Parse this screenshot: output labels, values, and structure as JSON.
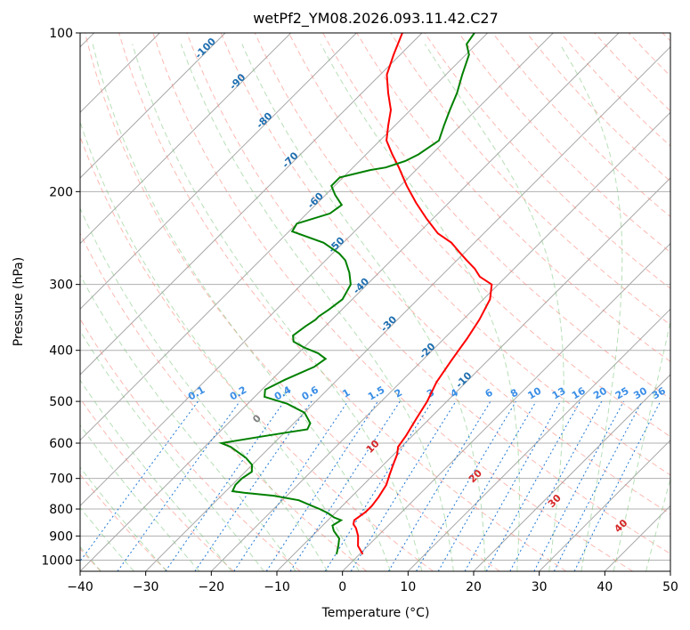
{
  "chart_data": {
    "type": "line",
    "title": "wetPf2_YM08.2026.093.11.42.C27",
    "xlabel": "Temperature (°C)",
    "ylabel": "Pressure (hPa)",
    "xlim": [
      -40,
      50
    ],
    "ylim": [
      1050,
      100
    ],
    "y_scale": "log",
    "skew": "skew-T log-p diagram",
    "x_ticks": [
      "−40",
      "−30",
      "−20",
      "−10",
      "0",
      "10",
      "20",
      "30",
      "40",
      "50"
    ],
    "y_ticks": [
      "100",
      "200",
      "300",
      "400",
      "500",
      "600",
      "700",
      "800",
      "900",
      "1000"
    ],
    "grid": true,
    "series": [
      {
        "color": "#ff0000",
        "points": [
          [
            0.5,
            975
          ],
          [
            -1.5,
            940
          ],
          [
            -3.0,
            900
          ],
          [
            -4.5,
            870
          ],
          [
            -5.5,
            855
          ],
          [
            -6.0,
            840
          ],
          [
            -5.5,
            810
          ],
          [
            -5.5,
            790
          ],
          [
            -5.8,
            760
          ],
          [
            -6.5,
            720
          ],
          [
            -7.5,
            690
          ],
          [
            -8.5,
            660
          ],
          [
            -9.5,
            630
          ],
          [
            -10.5,
            610
          ],
          [
            -11.0,
            580
          ],
          [
            -12.0,
            540
          ],
          [
            -13.0,
            500
          ],
          [
            -14.5,
            460
          ],
          [
            -15.5,
            420
          ],
          [
            -16.0,
            400
          ],
          [
            -16.5,
            380
          ],
          [
            -17.5,
            350
          ],
          [
            -19.0,
            320
          ],
          [
            -21.0,
            300
          ],
          [
            -24.0,
            290
          ],
          [
            -26.0,
            280
          ],
          [
            -28.5,
            270
          ],
          [
            -31.0,
            260
          ],
          [
            -33.5,
            250
          ],
          [
            -37.0,
            240
          ],
          [
            -41.0,
            225
          ],
          [
            -45.0,
            210
          ],
          [
            -49.0,
            195
          ],
          [
            -53.0,
            180
          ],
          [
            -56.0,
            170
          ],
          [
            -59.0,
            160
          ],
          [
            -61.0,
            150
          ],
          [
            -63.0,
            140
          ],
          [
            -66.0,
            130
          ],
          [
            -69.0,
            120
          ],
          [
            -71.0,
            110
          ],
          [
            -73.0,
            100
          ]
        ]
      },
      {
        "color": "#008000",
        "points": [
          [
            -3.5,
            975
          ],
          [
            -4.5,
            940
          ],
          [
            -5.5,
            910
          ],
          [
            -7.5,
            880
          ],
          [
            -8.5,
            860
          ],
          [
            -8.0,
            840
          ],
          [
            -9.5,
            830
          ],
          [
            -11.0,
            815
          ],
          [
            -13.0,
            800
          ],
          [
            -14.5,
            790
          ],
          [
            -17.5,
            770
          ],
          [
            -22.0,
            755
          ],
          [
            -27.0,
            745
          ],
          [
            -29.0,
            740
          ],
          [
            -29.5,
            720
          ],
          [
            -29.5,
            700
          ],
          [
            -29.0,
            680
          ],
          [
            -30.0,
            660
          ],
          [
            -32.0,
            640
          ],
          [
            -36.0,
            610
          ],
          [
            -38.0,
            600
          ],
          [
            -32.0,
            580
          ],
          [
            -27.0,
            565
          ],
          [
            -27.5,
            550
          ],
          [
            -30.0,
            525
          ],
          [
            -34.0,
            505
          ],
          [
            -38.5,
            490
          ],
          [
            -39.5,
            475
          ],
          [
            -38.0,
            455
          ],
          [
            -35.5,
            430
          ],
          [
            -35.0,
            415
          ],
          [
            -37.0,
            405
          ],
          [
            -40.0,
            395
          ],
          [
            -42.5,
            385
          ],
          [
            -43.5,
            375
          ],
          [
            -43.0,
            360
          ],
          [
            -42.5,
            350
          ],
          [
            -42.5,
            345
          ],
          [
            -42.0,
            335
          ],
          [
            -41.5,
            320
          ],
          [
            -42.5,
            300
          ],
          [
            -44.5,
            285
          ],
          [
            -47.0,
            270
          ],
          [
            -49.0,
            262
          ],
          [
            -53.0,
            250
          ],
          [
            -59.5,
            238
          ],
          [
            -60.0,
            230
          ],
          [
            -56.5,
            220
          ],
          [
            -56.0,
            212
          ],
          [
            -58.5,
            203
          ],
          [
            -60.5,
            195
          ],
          [
            -60.5,
            188
          ],
          [
            -57.0,
            182
          ],
          [
            -55.0,
            180
          ],
          [
            -53.0,
            175
          ],
          [
            -52.0,
            170
          ],
          [
            -51.0,
            160
          ],
          [
            -52.5,
            150
          ],
          [
            -54.0,
            140
          ],
          [
            -55.5,
            130
          ],
          [
            -57.5,
            120
          ],
          [
            -59.5,
            110
          ],
          [
            -61.5,
            105
          ],
          [
            -62.0,
            100
          ]
        ]
      }
    ],
    "dry_adiabat_labels": [
      "-100",
      "-90",
      "-80",
      "-70",
      "-60",
      "-50",
      "-40",
      "-30",
      "-20",
      "-10"
    ],
    "moist_adiabat_labels": [
      "0",
      "10",
      "20",
      "30",
      "40"
    ],
    "mixing_ratio_labels": [
      "0.1",
      "0.2",
      "0.4",
      "0.6",
      "1",
      "1.5",
      "2",
      "3",
      "4",
      "6",
      "8",
      "10",
      "13",
      "16",
      "20",
      "25",
      "30",
      "36"
    ],
    "colors": {
      "temperature": "#ff0000",
      "dewpoint": "#008000",
      "dry_adiabat": "#fa8072",
      "moist_adiabat": "#7cc47c",
      "mixing_ratio": "#1f77d4",
      "isotherm": "#808080",
      "dry_label": "#1f6fb0",
      "moist_label": "#d62728"
    }
  }
}
